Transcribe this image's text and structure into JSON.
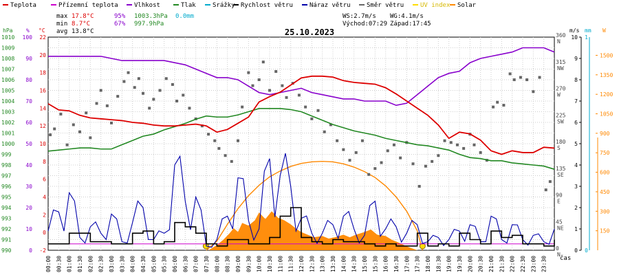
{
  "chart_data": {
    "type": "line",
    "title": "25.10.2023",
    "legend": [
      {
        "name": "Teplota",
        "color": "#dd0000"
      },
      {
        "name": "Přízemní teplota",
        "color": "#cc00cc"
      },
      {
        "name": "Vlhkost",
        "color": "#8800cc"
      },
      {
        "name": "Tlak",
        "color": "#228822"
      },
      {
        "name": "Srážky",
        "color": "#00aacc"
      },
      {
        "name": "Rychlost větru",
        "color": "#000000"
      },
      {
        "name": "Náraz větru",
        "color": "#0000aa"
      },
      {
        "name": "Směr větru",
        "color": "#666666"
      },
      {
        "name": "UV index",
        "color": "#ffdd00"
      },
      {
        "name": "Solar",
        "color": "#ff8800"
      }
    ],
    "stats": {
      "max_label": "max",
      "max_temp": "17.8°C",
      "max_hum": "95%",
      "max_press": "1003.3hPa",
      "rain": "0.0mm",
      "min_label": "min",
      "min_temp": "8.7°C",
      "min_hum": "67%",
      "min_press": "997.9hPa",
      "avg_label": "avg",
      "avg_temp": "13.8°C",
      "ws": "WS:2.7m/s",
      "wg": "WG:4.1m/s",
      "sunrise": "Východ:07:29",
      "sunset": "Západ:17:45"
    },
    "x_label": "čas",
    "x_ticks": [
      "00:00",
      "00:30",
      "01:00",
      "01:30",
      "02:00",
      "02:30",
      "03:00",
      "03:30",
      "04:00",
      "04:30",
      "05:00",
      "05:30",
      "06:00",
      "06:30",
      "07:00",
      "07:30",
      "08:00",
      "08:30",
      "09:00",
      "09:30",
      "10:00",
      "10:30",
      "11:00",
      "11:30",
      "12:00",
      "12:30",
      "13:00",
      "13:30",
      "14:00",
      "14:30",
      "15:00",
      "15:30",
      "16:00",
      "16:30",
      "17:00",
      "17:30",
      "18:00",
      "18:30",
      "19:00",
      "19:30",
      "20:00",
      "20:30",
      "21:00",
      "21:30",
      "22:00",
      "22:30",
      "23:00",
      "23:30"
    ],
    "axes": {
      "pressure": {
        "unit": "hPa",
        "range": [
          990,
          1010
        ],
        "ticks": [
          "990",
          "991",
          "992",
          "993",
          "994",
          "995",
          "996",
          "997",
          "998",
          "999",
          "1000",
          "1001",
          "1002",
          "1003",
          "1004",
          "1005",
          "1006",
          "1007",
          "1008",
          "1009",
          "1010"
        ]
      },
      "humidity": {
        "unit": "%",
        "range": [
          0,
          100
        ],
        "ticks": [
          "0",
          "10",
          "20",
          "30",
          "40",
          "50",
          "60",
          "70",
          "80",
          "90",
          "100"
        ]
      },
      "temperature": {
        "unit": "°C",
        "range": [
          -2,
          22
        ],
        "ticks": [
          "-2",
          "0",
          "2",
          "4",
          "6",
          "8",
          "10",
          "12",
          "14",
          "16",
          "18",
          "20",
          "22"
        ]
      },
      "direction": {
        "unit": "°",
        "range": [
          0,
          360
        ],
        "ticks": [
          {
            "v": 0,
            "deg": "0",
            "dir": "N"
          },
          {
            "v": 45,
            "deg": "45",
            "dir": "NE"
          },
          {
            "v": 90,
            "deg": "90",
            "dir": "E"
          },
          {
            "v": 135,
            "deg": "135",
            "dir": "SE"
          },
          {
            "v": 180,
            "deg": "180",
            "dir": "S"
          },
          {
            "v": 225,
            "deg": "225",
            "dir": "SW"
          },
          {
            "v": 270,
            "deg": "270",
            "dir": "W"
          },
          {
            "v": 315,
            "deg": "315",
            "dir": "NW"
          },
          {
            "v": 360,
            "deg": "360",
            "dir": "N"
          }
        ]
      },
      "wind": {
        "unit": "m/s",
        "range": [
          0,
          10
        ],
        "ticks": [
          "0",
          "1",
          "2",
          "3",
          "4",
          "5",
          "6",
          "7",
          "8",
          "9",
          "10"
        ]
      },
      "rain": {
        "unit": "mm",
        "range": [
          0,
          1
        ],
        "ticks": [
          "0",
          "1"
        ]
      },
      "solar": {
        "unit": "W",
        "range": [
          0,
          1500
        ],
        "ticks": [
          "150",
          "300",
          "450",
          "600",
          "750",
          "900",
          "1050",
          "1200",
          "1350",
          "1500"
        ]
      }
    },
    "series": {
      "temperature_t": [
        0,
        0.5,
        1,
        1.5,
        2,
        2.5,
        3,
        3.5,
        4,
        4.5,
        5,
        5.5,
        6,
        6.5,
        7,
        7.5,
        8,
        8.5,
        9,
        9.5,
        10,
        10.5,
        11,
        11.5,
        12,
        12.5,
        13,
        13.5,
        14,
        14.5,
        15,
        15.5,
        16,
        16.5,
        17,
        17.5,
        18,
        18.5,
        19,
        19.5,
        20,
        20.5,
        21,
        21.5,
        22,
        22.5,
        23,
        23.5,
        24
      ],
      "temperature": [
        14.5,
        13.8,
        13.7,
        13.2,
        12.9,
        12.8,
        12.7,
        12.6,
        12.4,
        12.3,
        12.1,
        12.0,
        12.0,
        12.1,
        12.2,
        12.0,
        11.3,
        11.6,
        12.3,
        13.0,
        14.7,
        15.3,
        15.8,
        16.6,
        17.4,
        17.6,
        17.6,
        17.5,
        17.1,
        16.9,
        16.8,
        16.7,
        16.3,
        15.6,
        14.8,
        14.0,
        13.2,
        12.1,
        10.6,
        11.3,
        11.1,
        10.4,
        9.2,
        8.8,
        9.2,
        9.0,
        9.0,
        9.6,
        9.5
      ],
      "humidity": [
        91,
        91,
        91,
        91,
        91,
        91,
        90,
        89,
        89,
        89,
        89,
        89,
        88,
        87,
        85,
        83,
        81,
        81,
        80,
        77,
        74,
        73,
        74,
        75,
        76,
        74,
        73,
        72,
        71,
        71,
        70,
        70,
        70,
        68,
        69,
        73,
        77,
        81,
        83,
        84,
        88,
        90,
        91,
        92,
        93,
        95,
        95,
        95,
        93
      ],
      "pressure": [
        999.3,
        999.4,
        999.5,
        999.6,
        999.6,
        999.5,
        999.5,
        999.9,
        1000.3,
        1000.7,
        1000.9,
        1001.3,
        1001.6,
        1001.9,
        1002.3,
        1002.6,
        1002.5,
        1002.5,
        1002.7,
        1003.0,
        1003.3,
        1003.3,
        1003.3,
        1003.2,
        1003.0,
        1002.6,
        1002.2,
        1001.8,
        1001.5,
        1001.2,
        1001.0,
        1000.8,
        1000.5,
        1000.3,
        1000.1,
        999.9,
        999.8,
        999.6,
        999.4,
        999.0,
        998.7,
        998.6,
        998.4,
        998.4,
        998.2,
        998.1,
        998.0,
        997.9,
        997.6
      ],
      "wind_speed": [
        0.3,
        0.3,
        0.8,
        0.8,
        0.4,
        0.4,
        0.3,
        0.3,
        0.8,
        0.9,
        0.3,
        0.4,
        1.3,
        1.1,
        0.8,
        0.3,
        0.2,
        0.5,
        0.5,
        0.3,
        0.3,
        0.6,
        1.6,
        2.0,
        0.6,
        0.4,
        0.3,
        0.5,
        0.4,
        0.4,
        0.3,
        0.2,
        0.3,
        0.2,
        0.2,
        0.8,
        0.2,
        0.3,
        0.2,
        0.8,
        0.5,
        0.3,
        0.9,
        0.6,
        0.7,
        0.3,
        0.3,
        0.2,
        0.5
      ],
      "wind_gust": [
        0.9,
        1.8,
        2.7,
        0.6,
        1.1,
        0.8,
        1.7,
        0.4,
        1.3,
        2.0,
        0.5,
        0.8,
        4.0,
        2.3,
        2.5,
        0.2,
        0.5,
        1.6,
        3.4,
        1.4,
        1.0,
        4.3,
        3.5,
        3.0,
        1.5,
        0.8,
        0.8,
        1.2,
        1.6,
        1.0,
        0.7,
        2.3,
        1.0,
        1.1,
        0.8,
        1.2,
        0.4,
        0.6,
        0.5,
        0.9,
        1.2,
        0.4,
        1.6,
        0.5,
        1.2,
        0.5,
        0.7,
        0.4,
        1.0
      ],
      "direction_points": [
        [
          0.1,
          195
        ],
        [
          0.3,
          205
        ],
        [
          0.6,
          230
        ],
        [
          0.9,
          178
        ],
        [
          1.2,
          212
        ],
        [
          1.5,
          200
        ],
        [
          1.8,
          232
        ],
        [
          2.0,
          190
        ],
        [
          2.3,
          248
        ],
        [
          2.5,
          270
        ],
        [
          2.8,
          244
        ],
        [
          3.0,
          215
        ],
        [
          3.3,
          260
        ],
        [
          3.6,
          285
        ],
        [
          3.8,
          300
        ],
        [
          4.1,
          275
        ],
        [
          4.3,
          290
        ],
        [
          4.5,
          265
        ],
        [
          4.8,
          240
        ],
        [
          5.0,
          255
        ],
        [
          5.3,
          270
        ],
        [
          5.6,
          290
        ],
        [
          5.9,
          280
        ],
        [
          6.1,
          252
        ],
        [
          6.4,
          262
        ],
        [
          6.7,
          240
        ],
        [
          7.0,
          222
        ],
        [
          7.3,
          210
        ],
        [
          7.6,
          196
        ],
        [
          7.9,
          185
        ],
        [
          8.1,
          172
        ],
        [
          8.4,
          160
        ],
        [
          8.7,
          150
        ],
        [
          9.0,
          185
        ],
        [
          9.2,
          242
        ],
        [
          9.5,
          300
        ],
        [
          9.7,
          278
        ],
        [
          10.0,
          288
        ],
        [
          10.2,
          318
        ],
        [
          10.5,
          270
        ],
        [
          10.8,
          302
        ],
        [
          11.1,
          278
        ],
        [
          11.3,
          258
        ],
        [
          11.6,
          282
        ],
        [
          11.9,
          262
        ],
        [
          12.2,
          242
        ],
        [
          12.5,
          222
        ],
        [
          12.8,
          236
        ],
        [
          13.1,
          200
        ],
        [
          13.4,
          212
        ],
        [
          13.7,
          185
        ],
        [
          14.0,
          170
        ],
        [
          14.3,
          152
        ],
        [
          14.6,
          165
        ],
        [
          14.9,
          185
        ],
        [
          15.2,
          128
        ],
        [
          15.5,
          138
        ],
        [
          15.8,
          148
        ],
        [
          16.1,
          168
        ],
        [
          16.4,
          178
        ],
        [
          16.7,
          156
        ],
        [
          17.0,
          182
        ],
        [
          17.3,
          146
        ],
        [
          17.6,
          108
        ],
        [
          17.9,
          142
        ],
        [
          18.2,
          150
        ],
        [
          18.5,
          160
        ],
        [
          18.8,
          185
        ],
        [
          19.1,
          182
        ],
        [
          19.4,
          178
        ],
        [
          19.7,
          172
        ],
        [
          20.0,
          196
        ],
        [
          20.2,
          178
        ],
        [
          20.5,
          165
        ],
        [
          20.8,
          152
        ],
        [
          21.1,
          242
        ],
        [
          21.3,
          250
        ],
        [
          21.6,
          245
        ],
        [
          21.9,
          298
        ],
        [
          22.1,
          288
        ],
        [
          22.4,
          292
        ],
        [
          22.7,
          288
        ],
        [
          23.0,
          268
        ],
        [
          23.3,
          292
        ],
        [
          23.6,
          102
        ],
        [
          23.8,
          116
        ]
      ],
      "solar_curve": [
        [
          7.5,
          0
        ],
        [
          8.0,
          70
        ],
        [
          8.5,
          200
        ],
        [
          9.0,
          320
        ],
        [
          9.5,
          420
        ],
        [
          10.0,
          500
        ],
        [
          10.5,
          565
        ],
        [
          11.0,
          610
        ],
        [
          11.5,
          645
        ],
        [
          12.0,
          668
        ],
        [
          12.5,
          680
        ],
        [
          13.0,
          684
        ],
        [
          13.5,
          680
        ],
        [
          14.0,
          665
        ],
        [
          14.5,
          640
        ],
        [
          15.0,
          605
        ],
        [
          15.5,
          560
        ],
        [
          16.0,
          495
        ],
        [
          16.5,
          410
        ],
        [
          17.0,
          300
        ],
        [
          17.5,
          150
        ],
        [
          17.75,
          0
        ]
      ],
      "solar_measured": [
        [
          7.6,
          0
        ],
        [
          8.0,
          40
        ],
        [
          8.3,
          80
        ],
        [
          8.6,
          130
        ],
        [
          8.8,
          170
        ],
        [
          9.0,
          140
        ],
        [
          9.2,
          210
        ],
        [
          9.5,
          190
        ],
        [
          9.8,
          230
        ],
        [
          10.0,
          290
        ],
        [
          10.3,
          240
        ],
        [
          10.6,
          300
        ],
        [
          10.9,
          250
        ],
        [
          11.2,
          230
        ],
        [
          11.5,
          200
        ],
        [
          11.8,
          160
        ],
        [
          12.0,
          140
        ],
        [
          12.3,
          120
        ],
        [
          12.6,
          100
        ],
        [
          13.0,
          110
        ],
        [
          13.3,
          90
        ],
        [
          13.6,
          100
        ],
        [
          14.0,
          120
        ],
        [
          14.3,
          100
        ],
        [
          14.6,
          120
        ],
        [
          15.0,
          140
        ],
        [
          15.3,
          160
        ],
        [
          15.6,
          120
        ],
        [
          16.0,
          110
        ],
        [
          16.3,
          80
        ],
        [
          16.6,
          60
        ],
        [
          17.0,
          30
        ],
        [
          17.5,
          0
        ]
      ]
    }
  }
}
